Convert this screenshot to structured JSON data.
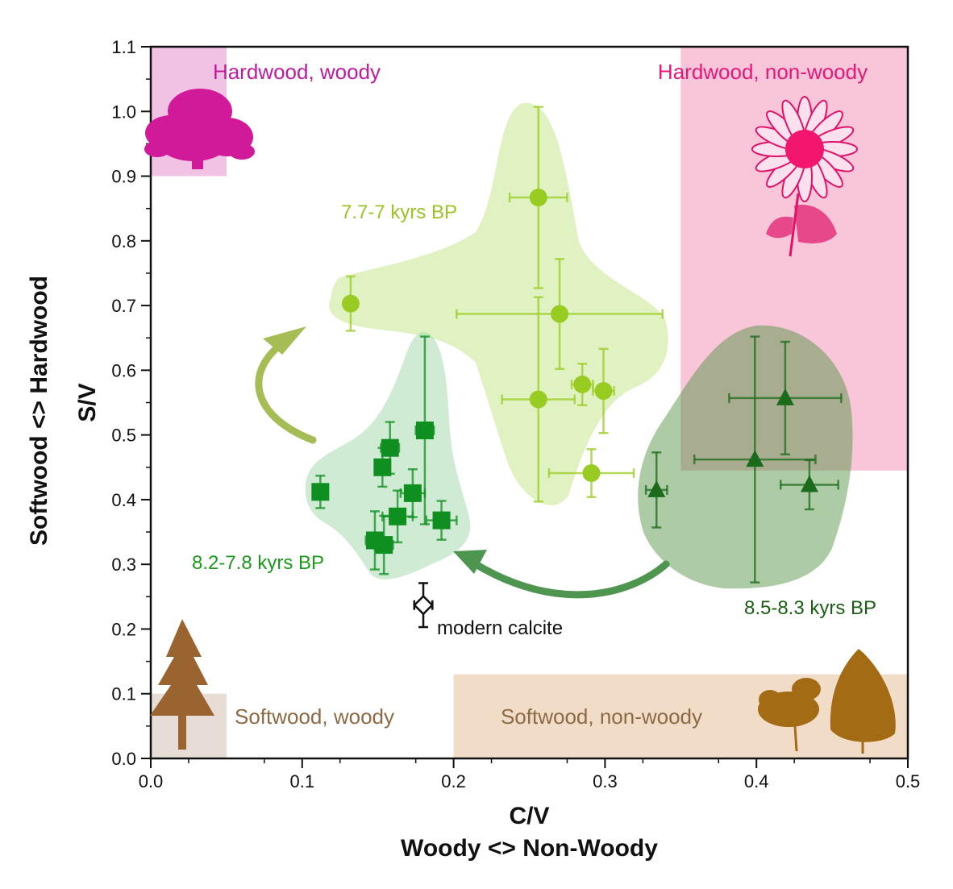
{
  "chart_data": {
    "type": "scatter",
    "xlim": [
      0,
      0.5
    ],
    "ylim": [
      0,
      1.1
    ],
    "x_ticks": [
      "0.0",
      "0.1",
      "0.2",
      "0.3",
      "0.4",
      "0.5"
    ],
    "y_ticks": [
      "0.0",
      "0.1",
      "0.2",
      "0.3",
      "0.4",
      "0.5",
      "0.6",
      "0.7",
      "0.8",
      "0.9",
      "1.0",
      "1.1"
    ],
    "xlabel": "C/V",
    "xlabel2": "Woody   <>   Non-Woody",
    "ylabel": "S/V",
    "ylabel2": "Softwood   <>   Hardwood",
    "regions": [
      {
        "label": "Hardwood, woody",
        "x": [
          0,
          0.05
        ],
        "y": [
          0.9,
          1.1
        ],
        "color": "#f2c2e4",
        "text_color": "#c01aa0"
      },
      {
        "label": "Hardwood, non-woody",
        "x": [
          0.35,
          0.5
        ],
        "y": [
          0.445,
          1.1
        ],
        "color": "#f8c6d8",
        "text_color": "#e5177a"
      },
      {
        "label": "Softwood, woody",
        "x": [
          0,
          0.05
        ],
        "y": [
          0,
          0.1
        ],
        "color": "#e8ddd6",
        "text_color": "#8c6a45"
      },
      {
        "label": "Softwood, non-woody",
        "x": [
          0.2,
          0.5
        ],
        "y": [
          0,
          0.13
        ],
        "color": "#f1dcc8",
        "text_color": "#8c6a45"
      }
    ],
    "series": [
      {
        "name": "8.2-7.8 kyrs BP",
        "marker": "square",
        "color": "#0f8f1f",
        "points": [
          {
            "x": 0.112,
            "y": 0.412,
            "xerr": 0.004,
            "yerr": 0.025
          },
          {
            "x": 0.153,
            "y": 0.45,
            "xerr": 0.005,
            "yerr": 0.03
          },
          {
            "x": 0.158,
            "y": 0.48,
            "xerr": 0.006,
            "yerr": 0.04
          },
          {
            "x": 0.181,
            "y": 0.507,
            "xerr": 0.006,
            "yerr": 0.145
          },
          {
            "x": 0.173,
            "y": 0.41,
            "xerr": 0.008,
            "yerr": 0.037
          },
          {
            "x": 0.163,
            "y": 0.374,
            "xerr": 0.01,
            "yerr": 0.04
          },
          {
            "x": 0.192,
            "y": 0.368,
            "xerr": 0.01,
            "yerr": 0.03
          },
          {
            "x": 0.148,
            "y": 0.337,
            "xerr": 0.006,
            "yerr": 0.045
          },
          {
            "x": 0.154,
            "y": 0.33,
            "xerr": 0.006,
            "yerr": 0.045
          }
        ]
      },
      {
        "name": "7.7-7 kyrs BP",
        "marker": "circle",
        "color": "#99cc22",
        "points": [
          {
            "x": 0.132,
            "y": 0.703,
            "xerr": 0.0,
            "yerr": 0.042
          },
          {
            "x": 0.256,
            "y": 0.867,
            "xerr": 0.019,
            "yerr": 0.14
          },
          {
            "x": 0.27,
            "y": 0.687,
            "xerr": 0.068,
            "yerr": 0.085
          },
          {
            "x": 0.256,
            "y": 0.555,
            "xerr": 0.024,
            "yerr": 0.158
          },
          {
            "x": 0.285,
            "y": 0.578,
            "xerr": 0.007,
            "yerr": 0.032
          },
          {
            "x": 0.299,
            "y": 0.568,
            "xerr": 0.007,
            "yerr": 0.065
          },
          {
            "x": 0.291,
            "y": 0.441,
            "xerr": 0.028,
            "yerr": 0.037
          }
        ]
      },
      {
        "name": "8.5-8.3 kyrs BP",
        "marker": "triangle",
        "color": "#1c6b1c",
        "points": [
          {
            "x": 0.334,
            "y": 0.415,
            "xerr": 0.007,
            "yerr": 0.058
          },
          {
            "x": 0.419,
            "y": 0.557,
            "xerr": 0.037,
            "yerr": 0.087
          },
          {
            "x": 0.399,
            "y": 0.462,
            "xerr": 0.04,
            "yerr": 0.19
          },
          {
            "x": 0.435,
            "y": 0.423,
            "xerr": 0.019,
            "yerr": 0.038
          }
        ]
      },
      {
        "name": "modern calcite",
        "marker": "diamond",
        "color": "#111111",
        "points": [
          {
            "x": 0.18,
            "y": 0.237,
            "xerr": 0.006,
            "yerr": 0.034
          }
        ]
      }
    ]
  }
}
